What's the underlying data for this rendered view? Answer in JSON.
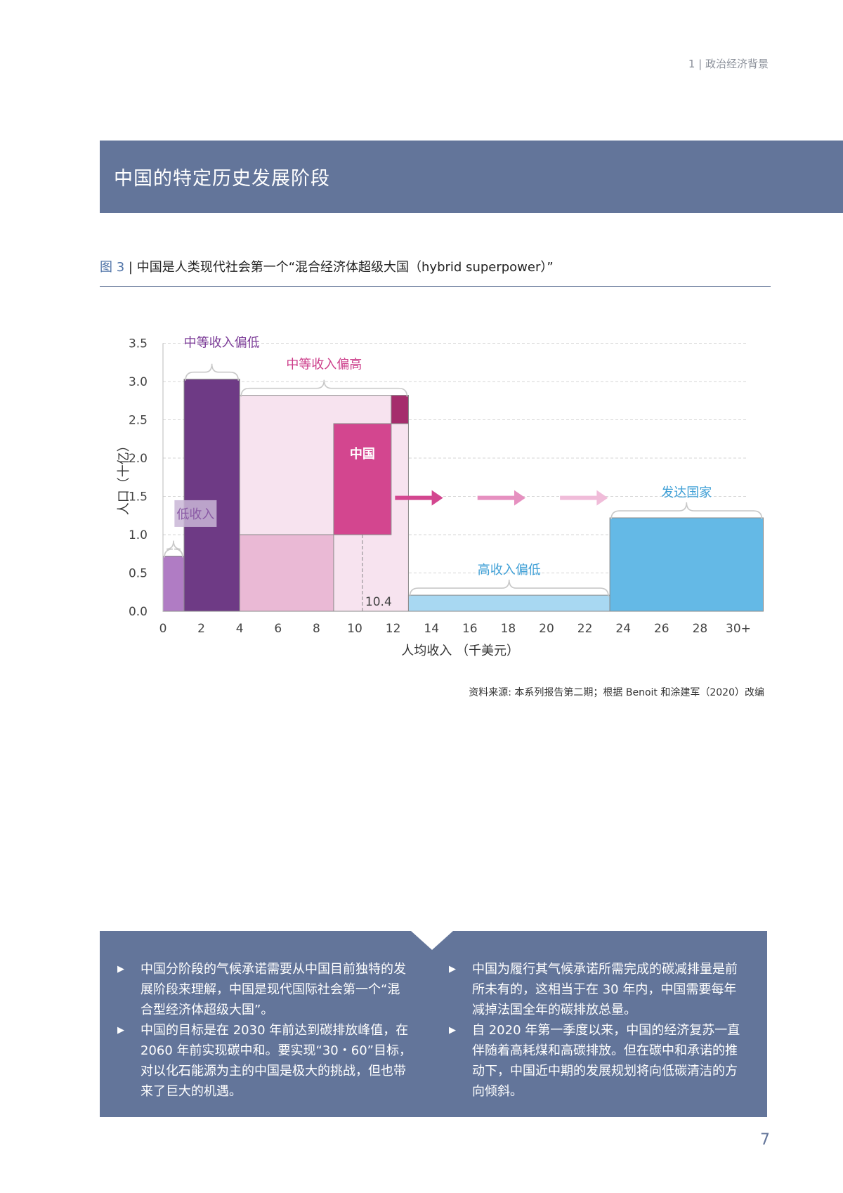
{
  "header": {
    "section": "1 | 政治经济背景"
  },
  "banner": {
    "title": "中国的特定历史发展阶段"
  },
  "figure": {
    "number": "图 3",
    "separator": " | ",
    "title": "中国是人类现代社会第一个“混合经济体超级大国（hybrid superpower）”"
  },
  "chart_data": {
    "type": "bar",
    "xlabel": "人均收入 （千美元）",
    "ylabel": "人口（十亿）",
    "xlim": [
      0,
      31
    ],
    "ylim": [
      0,
      3.5
    ],
    "x_ticks": [
      "0",
      "2",
      "4",
      "6",
      "8",
      "10",
      "12",
      "14",
      "16",
      "18",
      "20",
      "22",
      "24",
      "26",
      "28",
      "30+"
    ],
    "y_ticks": [
      "0.0",
      "0.5",
      "1.0",
      "1.5",
      "2.0",
      "2.5",
      "3.0",
      "3.5"
    ],
    "grid": "horizontal dashed",
    "groups": [
      {
        "label": "低收入",
        "x0": 0,
        "x1": 1.1,
        "y": 0.72,
        "color": "#b07cc4"
      },
      {
        "label": "中等收入偏低",
        "x0": 1.1,
        "x1": 4,
        "y": 3.03,
        "color": "#6e3a85"
      },
      {
        "label": "中等收入偏高",
        "x0": 4,
        "x1": 12.8,
        "y": 2.82,
        "color": "#f7e3ef"
      },
      {
        "label": "高收入偏低",
        "x0": 12.8,
        "x1": 23.3,
        "y": 0.21,
        "color": "#a8d8f2"
      },
      {
        "label": "发达国家",
        "x0": 23.3,
        "x1": 31.3,
        "y": 1.22,
        "color": "#64b9e6"
      }
    ],
    "sub_blocks": [
      {
        "x0": 4,
        "x1": 8.9,
        "y": 1.0,
        "color": "#eab9d5"
      },
      {
        "label": "中国",
        "x0": 8.9,
        "x1": 11.9,
        "y0": 1.0,
        "y1": 2.45,
        "color": "#d3468f"
      },
      {
        "x0": 11.9,
        "x1": 12.8,
        "y0": 2.45,
        "y1": 2.82,
        "color": "#a52d6c"
      }
    ],
    "annotations": [
      {
        "text": "10.4",
        "x": 10.4
      }
    ],
    "arrows_colors": [
      "#d3468f",
      "#e690c0",
      "#f0bcd9"
    ]
  },
  "source": "资料来源: 本系列报告第二期；根据 Benoit 和涂建军（2020）改编",
  "bottom": {
    "left": [
      "中国分阶段的气候承诺需要从中国目前独特的发展阶段来理解，中国是现代国际社会第一个“混合型经济体超级大国”。",
      "中国的目标是在 2030 年前达到碳排放峰值，在 2060 年前实现碳中和。要实现“30・60”目标，对以化石能源为主的中国是极大的挑战，但也带来了巨大的机遇。"
    ],
    "right": [
      "中国为履行其气候承诺所需完成的碳减排量是前所未有的，这相当于在 30 年内，中国需要每年减掉法国全年的碳排放总量。",
      "自 2020 年第一季度以来，中国的经济复苏一直伴随着高耗煤和高碳排放。但在碳中和承诺的推动下，中国近中期的发展规划将向低碳清洁的方向倾斜。"
    ],
    "bullet_glyph": "▶"
  },
  "page_number": "7"
}
